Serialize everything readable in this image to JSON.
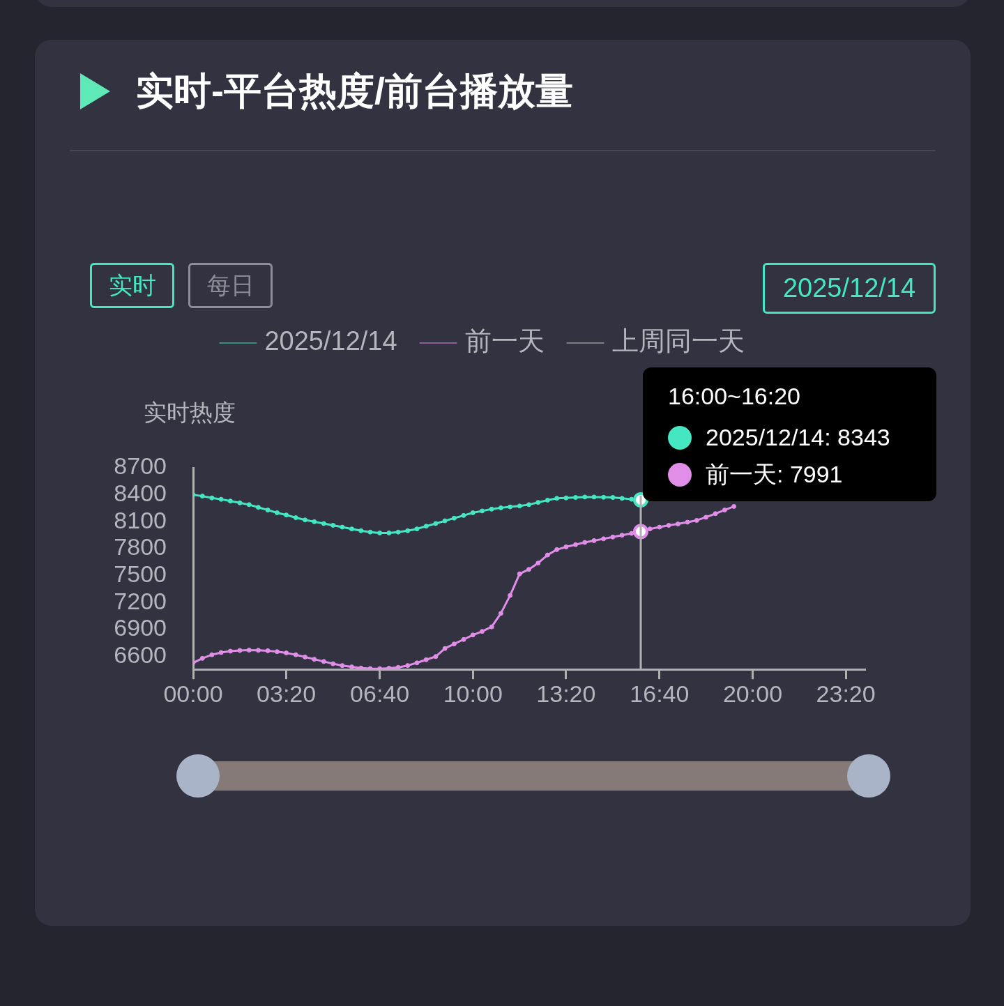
{
  "chart_data": {
    "type": "line",
    "title": "实时-平台热度/前台播放量",
    "ylabel": "实时热度",
    "annotations": [
      "实时",
      "每日",
      "2025/12/14",
      "16:00~16:20",
      "2025/12/14: 8343",
      "前一天: 7991"
    ],
    "legend": "top",
    "marker": "circle",
    "xlim": [
      0,
      24
    ],
    "xticks": [
      {
        "value": 0,
        "label": "00:00"
      },
      {
        "value": 3.33,
        "label": "03:20"
      },
      {
        "value": 6.67,
        "label": "06:40"
      },
      {
        "value": 10,
        "label": "10:00"
      },
      {
        "value": 13.33,
        "label": "13:20"
      },
      {
        "value": 16.67,
        "label": "16:40"
      },
      {
        "value": 20,
        "label": "20:00"
      },
      {
        "value": 23.33,
        "label": "23:20"
      }
    ],
    "ylim": [
      6457,
      8700
    ],
    "yticks": [
      6600,
      6900,
      7200,
      7500,
      7800,
      8100,
      8400,
      8700
    ],
    "ref_lines": [
      {
        "axis": "x",
        "value": 16,
        "color": "#b0b0b0"
      }
    ],
    "x": [
      0,
      0.33,
      0.67,
      1,
      1.33,
      1.67,
      2,
      2.33,
      2.67,
      3,
      3.33,
      3.67,
      4,
      4.33,
      4.67,
      5,
      5.33,
      5.67,
      6,
      6.33,
      6.67,
      7,
      7.33,
      7.67,
      8,
      8.33,
      8.67,
      9,
      9.33,
      9.67,
      10,
      10.33,
      10.67,
      11,
      11.33,
      11.67,
      12,
      12.33,
      12.67,
      13,
      13.33,
      13.67,
      14,
      14.33,
      14.67,
      15,
      15.33,
      15.67,
      16,
      16.33,
      16.67,
      17,
      17.33,
      17.67,
      18,
      18.33,
      18.67,
      19,
      19.33
    ],
    "series": [
      {
        "name": "2025/12/14",
        "color": "#45e6c2",
        "values": [
          8400,
          8385,
          8365,
          8350,
          8330,
          8310,
          8290,
          8260,
          8230,
          8200,
          8175,
          8145,
          8120,
          8100,
          8080,
          8060,
          8040,
          8020,
          8000,
          7985,
          7975,
          7975,
          7985,
          8000,
          8020,
          8050,
          8080,
          8110,
          8140,
          8170,
          8200,
          8220,
          8240,
          8255,
          8265,
          8275,
          8290,
          8315,
          8340,
          8360,
          8365,
          8370,
          8375,
          8375,
          8372,
          8370,
          8360,
          8350,
          8343,
          null,
          null,
          null,
          null,
          null,
          null,
          null,
          null,
          null,
          null
        ]
      },
      {
        "name": "前一天",
        "color": "#e08ee8",
        "values": [
          6530,
          6580,
          6620,
          6645,
          6660,
          6668,
          6672,
          6670,
          6665,
          6655,
          6640,
          6620,
          6595,
          6570,
          6545,
          6520,
          6500,
          6485,
          6472,
          6466,
          6465,
          6470,
          6480,
          6500,
          6530,
          6565,
          6600,
          6690,
          6740,
          6790,
          6840,
          6880,
          6930,
          7080,
          7280,
          7520,
          7570,
          7640,
          7730,
          7790,
          7820,
          7845,
          7870,
          7890,
          7910,
          7930,
          7950,
          7970,
          7991,
          8020,
          8040,
          8060,
          8075,
          8095,
          8115,
          8150,
          8190,
          8230,
          8270
        ]
      },
      {
        "name": "上周同一天",
        "color": "#c8c8c8",
        "values": [
          null,
          null,
          null,
          null,
          null,
          null,
          null,
          null,
          null,
          null,
          null,
          null,
          null,
          null,
          null,
          null,
          null,
          null,
          null,
          null,
          null,
          null,
          null,
          null,
          null,
          null,
          null,
          null,
          null,
          null,
          null,
          null,
          null,
          null,
          null,
          null,
          null,
          null,
          null,
          null,
          null,
          null,
          null,
          null,
          null,
          null,
          null,
          null,
          null,
          null,
          null,
          null,
          null,
          null,
          null,
          null,
          null,
          null,
          null
        ]
      }
    ]
  }
}
